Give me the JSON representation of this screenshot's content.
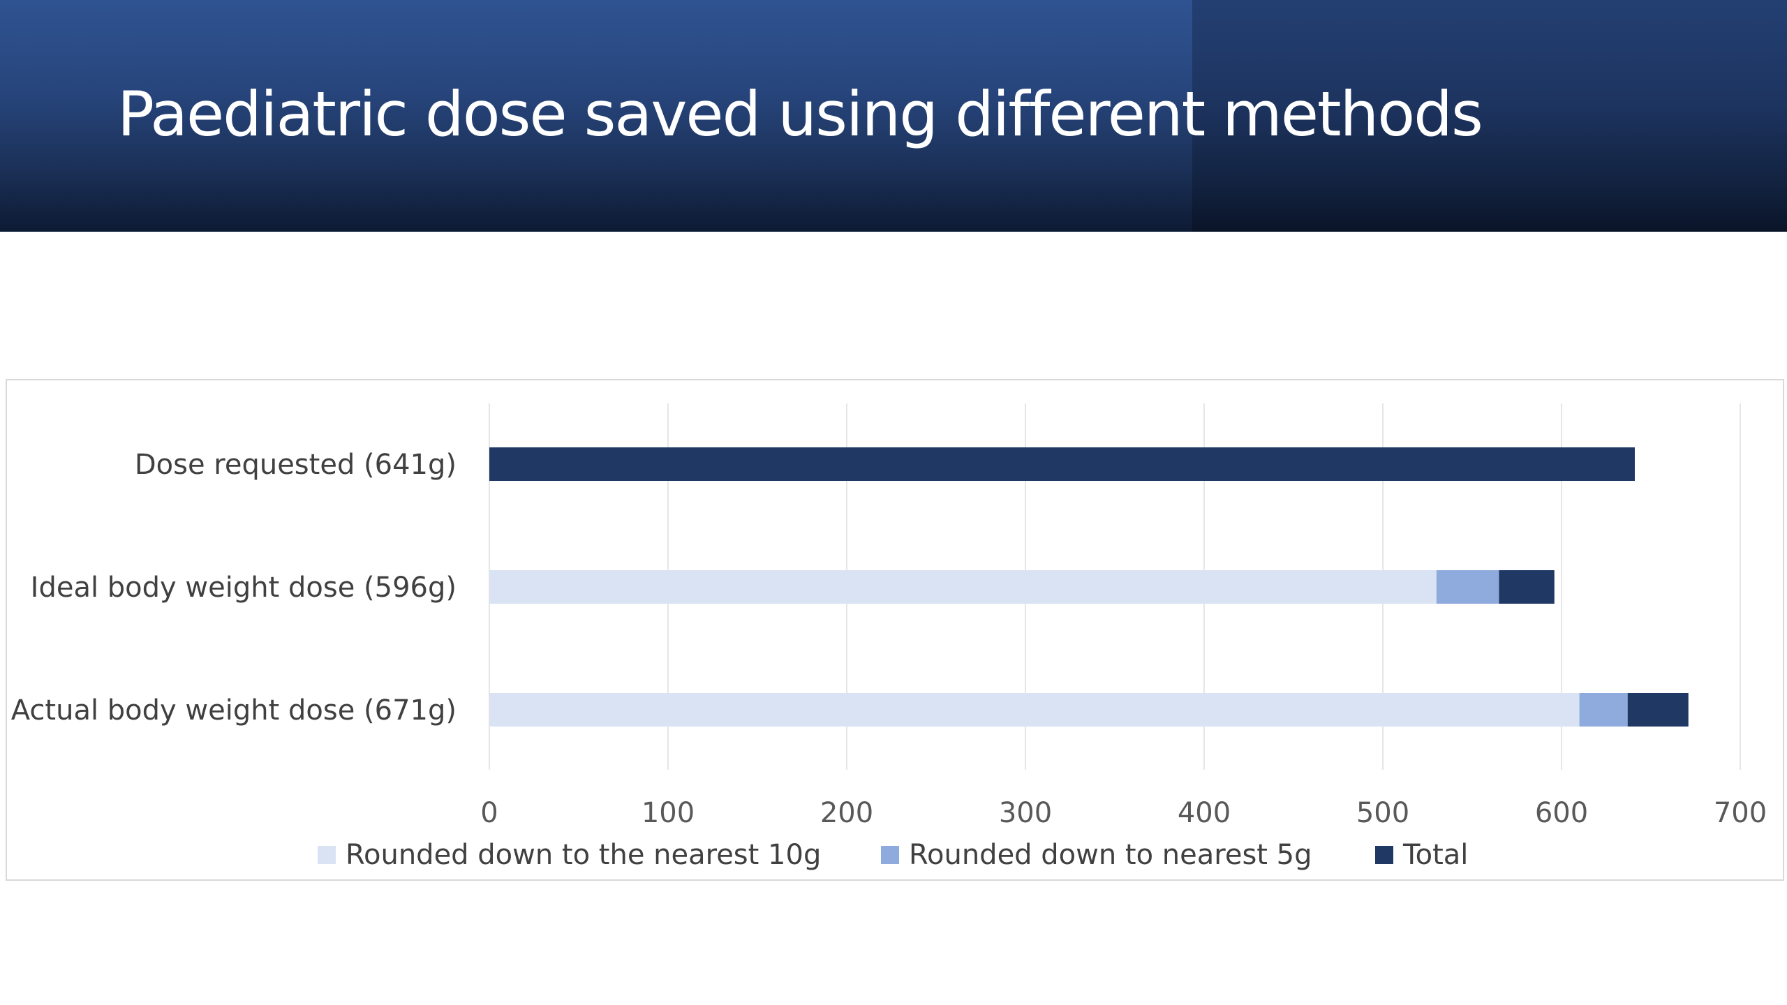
{
  "slide": {
    "title": "Paediatric dose saved using different methods"
  },
  "colors": {
    "series_10g": "#dae3f3",
    "series_5g": "#8faadc",
    "series_total": "#203864",
    "grid": "#e6e6e6",
    "label_text": "#404040",
    "tick_text": "#595959"
  },
  "chart_data": {
    "type": "bar",
    "orientation": "horizontal",
    "stacked": true,
    "categories": [
      "Dose requested (641g)",
      "Ideal body weight dose (596g)",
      "Actual body weight dose (671g)"
    ],
    "series": [
      {
        "name": "Rounded down to the nearest 10g",
        "values": [
          0,
          530,
          610
        ]
      },
      {
        "name": "Rounded down to nearest 5g",
        "values": [
          0,
          35,
          27
        ]
      },
      {
        "name": "Total",
        "values": [
          641,
          31,
          34
        ]
      }
    ],
    "xlim": [
      0,
      700
    ],
    "xticks": [
      "0",
      "100",
      "200",
      "300",
      "400",
      "500",
      "600",
      "700"
    ],
    "grid": true,
    "legend": "bottom"
  }
}
